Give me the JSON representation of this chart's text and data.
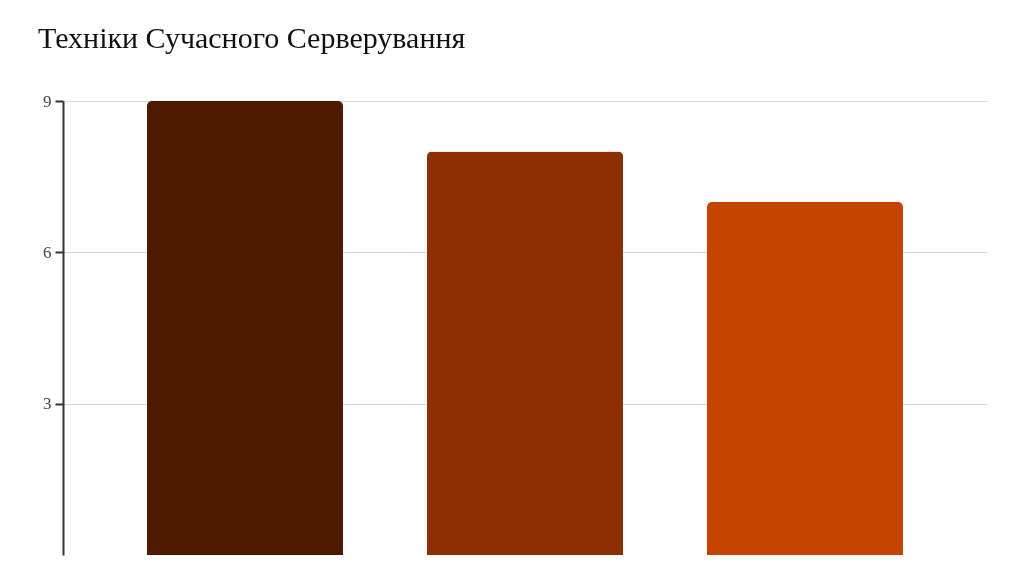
{
  "chart_data": {
    "type": "bar",
    "title": "Техніки Сучасного Серверування",
    "categories": [
      null,
      null,
      null
    ],
    "values": [
      9,
      8,
      7
    ],
    "colors": [
      "#4d1a00",
      "#8b2f00",
      "#c44400"
    ],
    "ylim": [
      0,
      9
    ],
    "yticks": [
      3,
      6,
      9
    ],
    "grid": "y",
    "tick_labels": "y"
  }
}
